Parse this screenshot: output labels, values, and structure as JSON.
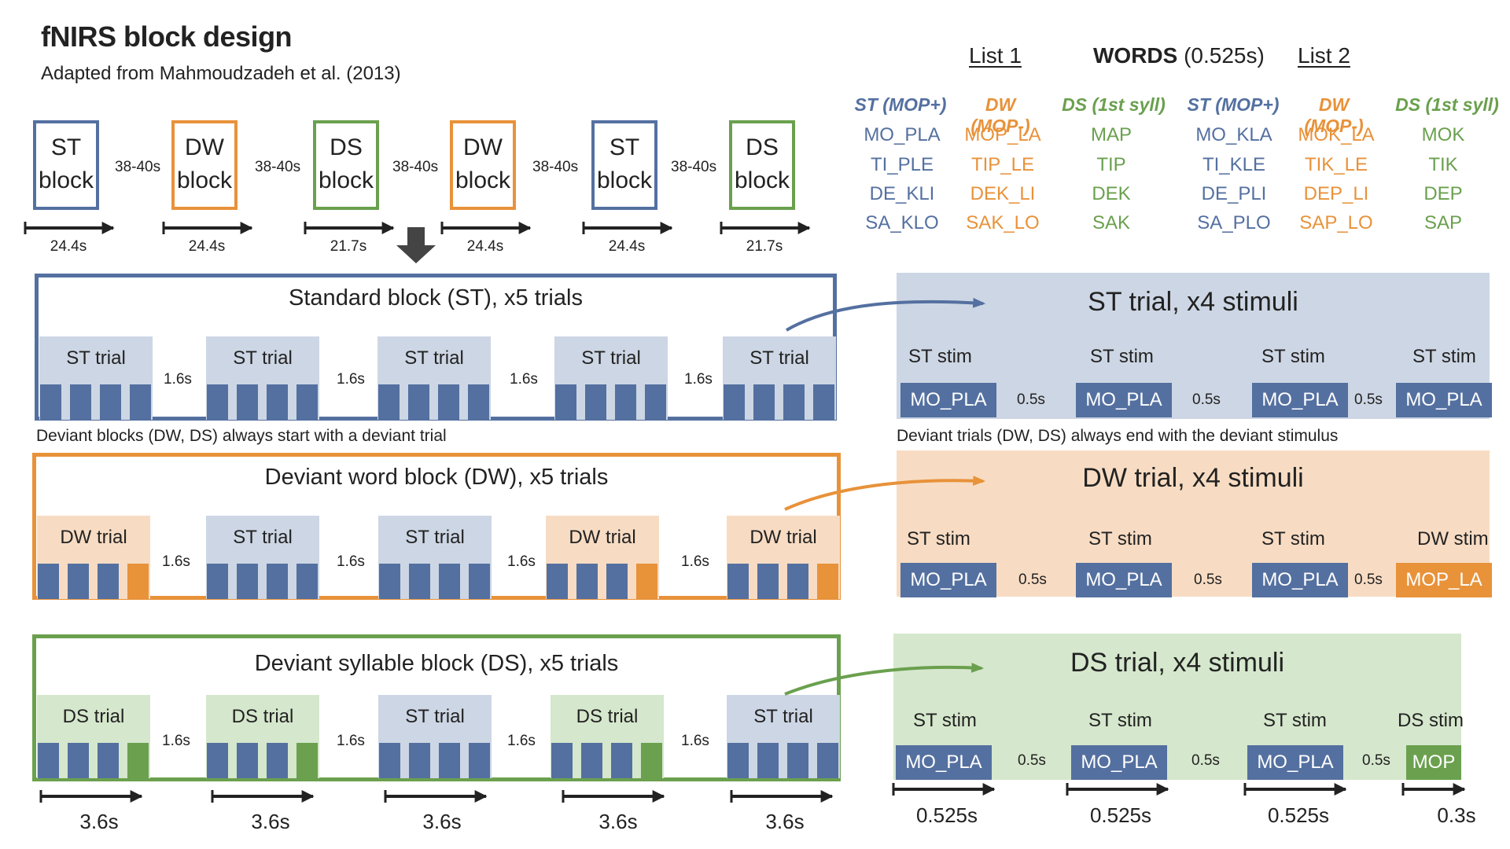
{
  "header": {
    "title": "fNIRS block design",
    "subtitle": "Adapted from Mahmoudzadeh et al. (2013)"
  },
  "colors": {
    "st": "#5470a0",
    "st_light": "#cdd6e4",
    "dw": "#e8923a",
    "dw_light": "#f7dcc3",
    "ds": "#6aa04e",
    "ds_light": "#d5e7cc",
    "arrow": "#444444"
  },
  "sequence": {
    "blocks": [
      {
        "line1": "ST",
        "line2": "block",
        "duration": "24.4s"
      },
      {
        "line1": "DW",
        "line2": "block",
        "duration": "24.4s"
      },
      {
        "line1": "DS",
        "line2": "block",
        "duration": "21.7s"
      },
      {
        "line1": "DW",
        "line2": "block",
        "duration": "24.4s"
      },
      {
        "line1": "ST",
        "line2": "block",
        "duration": "24.4s"
      },
      {
        "line1": "DS",
        "line2": "block",
        "duration": "21.7s"
      }
    ],
    "gaps": [
      "38-40s",
      "38-40s",
      "38-40s",
      "38-40s",
      "38-40s"
    ]
  },
  "words": {
    "list1": "List 1",
    "heading_bold": "WORDS",
    "heading_rest": " (0.525s)",
    "list2": "List 2",
    "columns": [
      "ST (MOP+)",
      "DW (MOP-)",
      "DS (1st syll)",
      "ST (MOP+)",
      "DW (MOP-)",
      "DS (1st syll)"
    ],
    "rows": [
      [
        "MO_PLA",
        "MOP_LA",
        "MAP",
        "MO_KLA",
        "MOK_LA",
        "MOK"
      ],
      [
        "TI_PLE",
        "TIP_LE",
        "TIP",
        "TI_KLE",
        "TIK_LE",
        "TIK"
      ],
      [
        "DE_KLI",
        "DEK_LI",
        "DEK",
        "DE_PLI",
        "DEP_LI",
        "DEP"
      ],
      [
        "SA_KLO",
        "SAK_LO",
        "SAK",
        "SA_PLO",
        "SAP_LO",
        "SAP"
      ]
    ]
  },
  "blocks": {
    "st": {
      "title": "Standard block (ST), x5 trials",
      "trials": [
        "ST trial",
        "ST trial",
        "ST trial",
        "ST trial",
        "ST trial"
      ],
      "gaps": [
        "1.6s",
        "1.6s",
        "1.6s",
        "1.6s"
      ]
    },
    "dw": {
      "title": "Deviant word block (DW), x5 trials",
      "trials": [
        "DW trial",
        "ST trial",
        "ST trial",
        "DW trial",
        "DW trial"
      ],
      "gaps": [
        "1.6s",
        "1.6s",
        "1.6s",
        "1.6s"
      ]
    },
    "ds": {
      "title": "Deviant syllable block (DS), x5 trials",
      "trials": [
        "DS trial",
        "DS trial",
        "ST trial",
        "DS trial",
        "ST trial"
      ],
      "gaps": [
        "1.6s",
        "1.6s",
        "1.6s",
        "1.6s"
      ]
    },
    "deviant_caption": "Deviant blocks (DW, DS) always start with a deviant trial",
    "trial_durations": [
      "3.6s",
      "3.6s",
      "3.6s",
      "3.6s",
      "3.6s"
    ]
  },
  "panels": {
    "st": {
      "title": "ST trial, x4 stimuli",
      "labels": [
        "ST stim",
        "ST stim",
        "ST stim",
        "ST stim"
      ],
      "stims": [
        "MO_PLA",
        "MO_PLA",
        "MO_PLA",
        "MO_PLA"
      ],
      "isi": [
        "0.5s",
        "0.5s",
        "0.5s"
      ]
    },
    "dw": {
      "title": "DW trial, x4 stimuli",
      "labels": [
        "ST stim",
        "ST stim",
        "ST stim",
        "DW stim"
      ],
      "stims": [
        "MO_PLA",
        "MO_PLA",
        "MO_PLA",
        "MOP_LA"
      ],
      "isi": [
        "0.5s",
        "0.5s",
        "0.5s"
      ]
    },
    "ds": {
      "title": "DS trial, x4 stimuli",
      "labels": [
        "ST stim",
        "ST stim",
        "ST stim",
        "DS stim"
      ],
      "stims": [
        "MO_PLA",
        "MO_PLA",
        "MO_PLA",
        "MOP"
      ],
      "isi": [
        "0.5s",
        "0.5s",
        "0.5s"
      ]
    },
    "deviant_caption": "Deviant trials (DW, DS) always end with the deviant stimulus",
    "stim_durations": [
      "0.525s",
      "0.525s",
      "0.525s",
      "0.3s"
    ]
  }
}
